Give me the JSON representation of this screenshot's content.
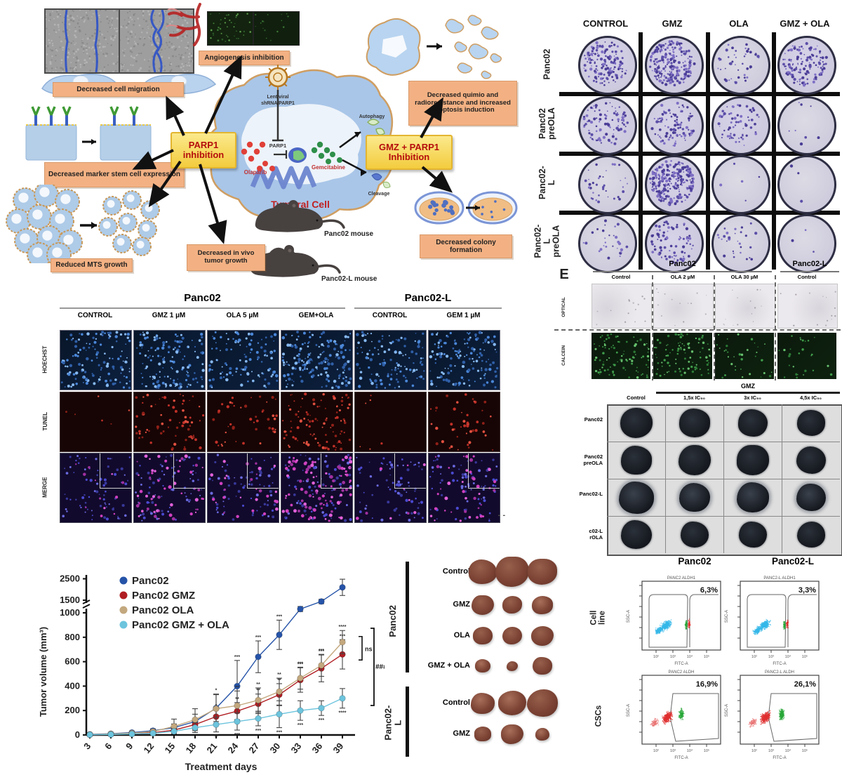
{
  "schematic": {
    "labels": {
      "migration": "Decreased cell migration",
      "stem": "Decreased marker stem cell expression",
      "mts": "Reduced MTS growth",
      "angiogenesis": "Angiogenesis inhibition",
      "parp1_box": "PARP1 inhibition",
      "gmz_box": "GMZ + PARP1 Inhibition",
      "lentiviral_line1": "Lentiviral",
      "lentiviral_line2": "shRNA PARP1",
      "parp1_small": "PARP1",
      "olaparib": "Olaparib",
      "gemcitabine": "Gemcitabine",
      "autophagy": "Autophagy",
      "cleavage": "Cleavage",
      "tumoral_cell": "Tumoral Cell",
      "mouse1": "Panc02 mouse",
      "mouse2": "Panc02-L mouse",
      "invivo": "Decreased in vivo tumor growth",
      "quimio": "Decreased quimio and radioresistance and increased apoptosis induction",
      "colony": "Decreased colony formation"
    }
  },
  "colony": {
    "col_headers": [
      "CONTROL",
      "GMZ",
      "OLA",
      "GMZ + OLA"
    ],
    "row_labels": [
      [
        "Panc02"
      ],
      [
        "Panc02",
        "preOLA"
      ],
      [
        "Panc02-L"
      ],
      [
        "Panc02-L",
        "preOLA"
      ]
    ],
    "densities": [
      [
        150,
        230,
        45,
        130
      ],
      [
        95,
        95,
        65,
        8
      ],
      [
        35,
        270,
        5,
        3
      ],
      [
        28,
        85,
        28,
        3
      ]
    ],
    "dot_color": "#5b4ea8",
    "well_bg": "#dbd8e9"
  },
  "panel_e": {
    "letter": "E",
    "group_headers": [
      "Panc02",
      "Panc02-L"
    ],
    "col_labels": [
      "Control",
      "OLA 2 µM",
      "OLA 30 µM",
      "Control"
    ],
    "row_labels": [
      "OPTICAL",
      "CALCEIN"
    ],
    "calcein_densities": [
      95,
      95,
      35,
      28
    ]
  },
  "spheroids": {
    "header": "GMZ",
    "col_labels": [
      "Control",
      "1,5x IC₅₀",
      "3x IC₅₀",
      "4,5x IC₅₀"
    ],
    "row_labels": [
      [
        "Panc02"
      ],
      [
        "Panc02",
        "preOLA"
      ],
      [
        "Panc02-L"
      ],
      [
        "c02-L",
        "rOLA"
      ]
    ],
    "sizes": [
      [
        46,
        44,
        42,
        40
      ],
      [
        44,
        46,
        46,
        42
      ],
      [
        50,
        44,
        46,
        42
      ],
      [
        44,
        40,
        40,
        40
      ]
    ]
  },
  "microscopy": {
    "groups": [
      {
        "label": "Panc02",
        "cols": [
          "CONTROL",
          "GMZ 1 µM",
          "OLA 5 µM",
          "GEM+OLA"
        ]
      },
      {
        "label": "Panc02-L",
        "cols": [
          "CONTROL",
          "GEM 1 µM"
        ]
      }
    ],
    "row_labels": [
      "HOECHST",
      "TUNEL",
      "MERGE"
    ],
    "hoechst_densities": [
      130,
      150,
      110,
      170,
      120,
      140
    ],
    "tunel_densities": [
      6,
      70,
      45,
      100,
      6,
      45
    ],
    "merge_magenta": [
      12,
      55,
      28,
      100,
      10,
      40
    ]
  },
  "chart_data": {
    "type": "line",
    "title": "",
    "xlabel": "Treatment days",
    "ylabel": "Tumor volume (mm³)",
    "x": [
      3,
      6,
      9,
      12,
      15,
      18,
      21,
      24,
      27,
      30,
      33,
      36,
      39
    ],
    "yticks": [
      0,
      200,
      400,
      600,
      800,
      1000,
      1500,
      2500
    ],
    "axis_break": true,
    "legend_position": "top-left",
    "series": [
      {
        "name": "Panc02",
        "color": "#2553a8",
        "values": [
          5,
          10,
          20,
          35,
          60,
          110,
          220,
          400,
          640,
          820,
          1150,
          1450,
          2100
        ],
        "errors": [
          3,
          5,
          10,
          15,
          30,
          60,
          110,
          210,
          130,
          120,
          100,
          90,
          380
        ],
        "sig": [
          "",
          "",
          "",
          "",
          "",
          "",
          "",
          "***",
          "***",
          "***",
          "",
          "",
          ""
        ]
      },
      {
        "name": "Panc02 GMZ",
        "color": "#b01e23",
        "values": [
          2,
          5,
          10,
          18,
          40,
          85,
          150,
          195,
          255,
          330,
          450,
          545,
          660
        ],
        "errors": [
          2,
          4,
          6,
          10,
          20,
          40,
          60,
          70,
          80,
          90,
          100,
          110,
          120
        ],
        "sig": [
          "",
          "",
          "",
          "",
          "",
          "",
          "*",
          "**",
          "**",
          "**",
          "***",
          "***",
          "***"
        ]
      },
      {
        "name": "Panc02 OLA",
        "color": "#c3a87e",
        "values": [
          3,
          8,
          15,
          28,
          70,
          125,
          215,
          240,
          285,
          355,
          465,
          570,
          760
        ],
        "errors": [
          2,
          5,
          10,
          15,
          60,
          90,
          120,
          120,
          100,
          110,
          90,
          90,
          95
        ],
        "sig": [
          "",
          "",
          "",
          "",
          "",
          "",
          "*",
          "**",
          "**",
          "**",
          "***",
          "***",
          "****"
        ]
      },
      {
        "name": "Panc02 GMZ + OLA",
        "color": "#6cc4dd",
        "values": [
          2,
          4,
          8,
          14,
          30,
          60,
          85,
          110,
          135,
          170,
          200,
          220,
          300
        ],
        "errors": [
          2,
          3,
          5,
          10,
          20,
          40,
          60,
          70,
          60,
          110,
          80,
          60,
          80
        ],
        "sig": [
          "",
          "",
          "",
          "",
          "",
          "",
          "**",
          "***",
          "***",
          "***",
          "***",
          "***",
          "****"
        ]
      }
    ],
    "annotations": {
      "ns": "ns",
      "hash": "###"
    }
  },
  "tumor_photos": {
    "groups": [
      {
        "label": "Panc02",
        "rows": [
          "Control",
          "GMZ",
          "OLA",
          "GMZ + OLA"
        ]
      },
      {
        "label": "Panc02-L",
        "rows": [
          "Control",
          "GMZ"
        ]
      }
    ],
    "sizes": [
      [
        40,
        48,
        42
      ],
      [
        32,
        28,
        30
      ],
      [
        28,
        28,
        32
      ],
      [
        22,
        16,
        28
      ],
      [
        34,
        40,
        44
      ],
      [
        24,
        32,
        20
      ]
    ]
  },
  "flow": {
    "col_titles": [
      "Panc02",
      "Panc02-L"
    ],
    "row_labels": [
      "Cell line",
      "CSCs"
    ],
    "xlabel": "FITC-A",
    "ylabel": "SSC-A",
    "xticklabels": [
      "10²",
      "10³",
      "10⁴",
      "10⁵"
    ],
    "plots": [
      {
        "title": "PANC2 ALDH1",
        "percent": "6,3%",
        "kind": "cell"
      },
      {
        "title": "PANC2-L ALDH1",
        "percent": "3,3%",
        "kind": "cell"
      },
      {
        "title": "PANC2 ALDH",
        "percent": "16,9%",
        "kind": "csc"
      },
      {
        "title": "PANC2-L ALDH",
        "percent": "26,1%",
        "kind": "csc"
      }
    ]
  },
  "misc": {
    "stray_marks": "- -"
  }
}
